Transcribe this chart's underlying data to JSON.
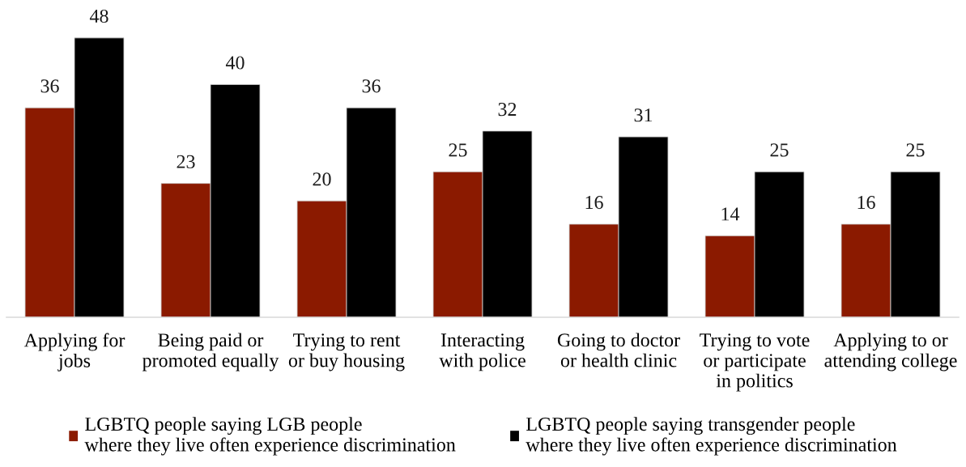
{
  "chart_data": {
    "type": "bar",
    "categories": [
      "Applying for\njobs",
      "Being paid or\npromoted equally",
      "Trying to rent\nor buy housing",
      "Interacting\nwith police",
      "Going to doctor\nor health clinic",
      "Trying to vote\nor participate\nin politics",
      "Applying to or\nattending college"
    ],
    "series": [
      {
        "name": "LGBTQ people saying LGB people\nwhere they live often experience discrimination",
        "color": "#8b1a00",
        "values": [
          36,
          23,
          20,
          25,
          16,
          14,
          16
        ]
      },
      {
        "name": "LGBTQ people saying transgender people\nwhere they live often experience discrimination",
        "color": "#000000",
        "values": [
          48,
          40,
          36,
          32,
          31,
          25,
          25
        ]
      }
    ],
    "data_labels": true,
    "legend": "bottom",
    "grid": false,
    "tick_labels": "x"
  }
}
